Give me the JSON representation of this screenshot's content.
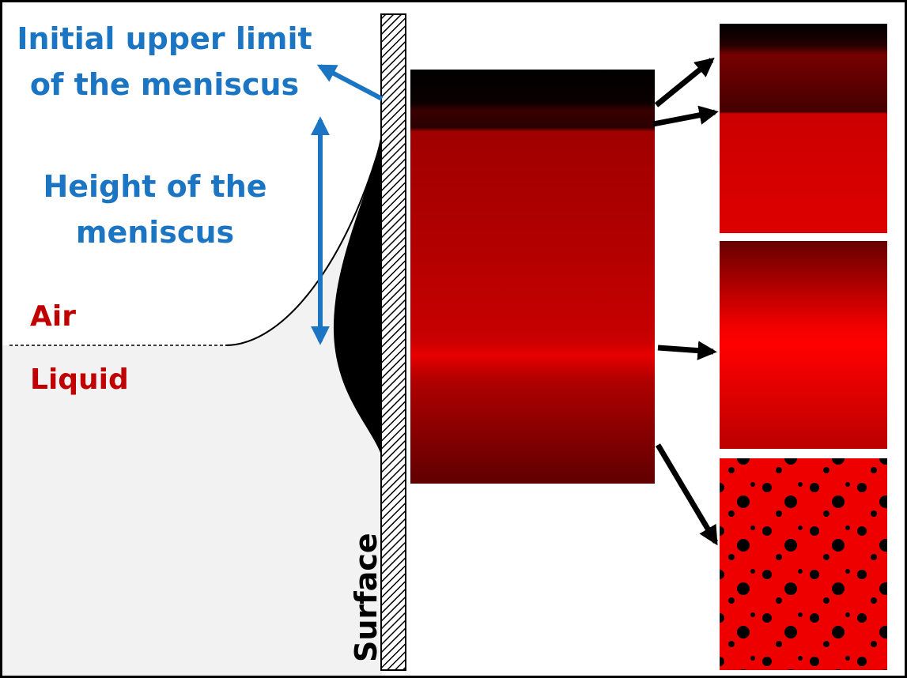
{
  "labels": {
    "upper_limit": [
      "Initial upper limit",
      "of the meniscus"
    ],
    "height": [
      "Height of the",
      "meniscus"
    ],
    "air": "Air",
    "liquid": "Liquid",
    "surface": "Surface"
  }
}
